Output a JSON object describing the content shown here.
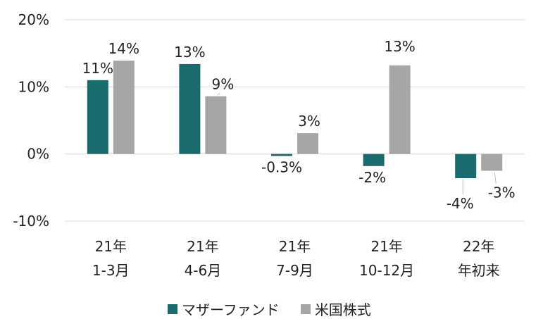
{
  "chart_data": {
    "type": "bar",
    "categories": [
      [
        "21年",
        "1-3月"
      ],
      [
        "21年",
        "4-6月"
      ],
      [
        "21年",
        "7-9月"
      ],
      [
        "21年",
        "10-12月"
      ],
      [
        "22年",
        "年初来"
      ]
    ],
    "series": [
      {
        "name": "マザーファンド",
        "color": "#1a6b6e",
        "values": [
          11,
          13.4,
          -0.3,
          -1.8,
          -3.6
        ],
        "labels": [
          "11%",
          "13%",
          "-0.3%",
          "-2%",
          "-4%"
        ]
      },
      {
        "name": "米国株式",
        "color": "#a6a6a6",
        "values": [
          13.9,
          8.6,
          3.1,
          13.2,
          -2.5
        ],
        "labels": [
          "14%",
          "9%",
          "3%",
          "13%",
          "-3%"
        ]
      }
    ],
    "ylim": [
      -10,
      20
    ],
    "yticks": [
      20,
      10,
      0,
      -10
    ],
    "ytick_labels": [
      "20%",
      "10%",
      "0%",
      "-10%"
    ],
    "grid": true,
    "legend_position": "bottom"
  }
}
